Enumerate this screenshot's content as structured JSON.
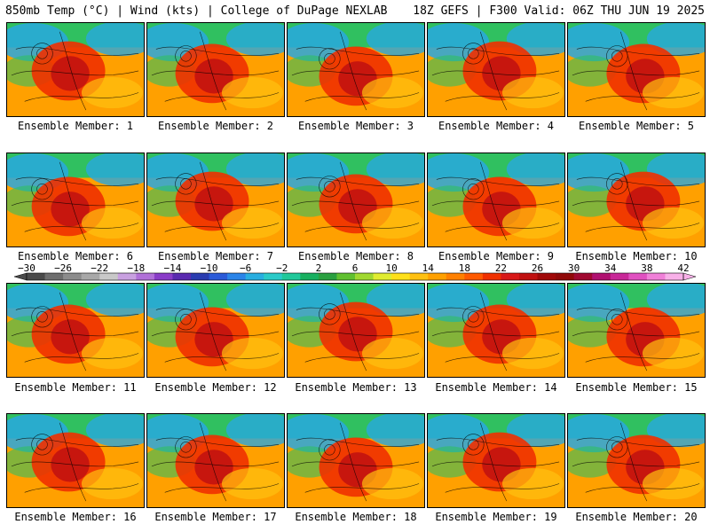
{
  "header": {
    "left": "850mb Temp (°C) | Wind (kts) | College of DuPage NEXLAB",
    "right": "18Z GEFS | F300 Valid: 06Z THU JUN 19 2025"
  },
  "members": [
    "Ensemble Member: 1",
    "Ensemble Member: 2",
    "Ensemble Member: 3",
    "Ensemble Member: 4",
    "Ensemble Member: 5",
    "Ensemble Member: 6",
    "Ensemble Member: 7",
    "Ensemble Member: 8",
    "Ensemble Member: 9",
    "Ensemble Member: 10",
    "Ensemble Member: 11",
    "Ensemble Member: 12",
    "Ensemble Member: 13",
    "Ensemble Member: 14",
    "Ensemble Member: 15",
    "Ensemble Member: 16",
    "Ensemble Member: 17",
    "Ensemble Member: 18",
    "Ensemble Member: 19",
    "Ensemble Member: 20"
  ],
  "colorbar": {
    "tick_labels": [
      "−30",
      "−26",
      "−22",
      "−18",
      "−14",
      "−10",
      "−6",
      "−2",
      "2",
      "6",
      "10",
      "14",
      "18",
      "22",
      "26",
      "30",
      "34",
      "38",
      "42"
    ],
    "colors": [
      "#4a4a4a",
      "#6e6e6e",
      "#8c8c8c",
      "#a8a8a8",
      "#c8c8c8",
      "#c8a0e0",
      "#b070d8",
      "#8a3cc8",
      "#5a2ab0",
      "#2a3cb0",
      "#2a5ad8",
      "#2a84e8",
      "#28aee0",
      "#2acac8",
      "#20c89a",
      "#18b060",
      "#2aa040",
      "#60c030",
      "#a0d830",
      "#e0ec30",
      "#ffe01a",
      "#ffc010",
      "#ffa000",
      "#ff8000",
      "#ff5a00",
      "#f03000",
      "#d81818",
      "#c01010",
      "#a00808",
      "#900808",
      "#a00830",
      "#b01070",
      "#c82898",
      "#e050c0",
      "#f080d8",
      "#f8b0e8"
    ]
  },
  "map_palette": {
    "ocean_cool": "#2ad0c0",
    "cold": "#28a8e0",
    "green": "#30c060",
    "warm": "#ffa000",
    "hot": "#f03000",
    "hottest": "#c01010"
  }
}
